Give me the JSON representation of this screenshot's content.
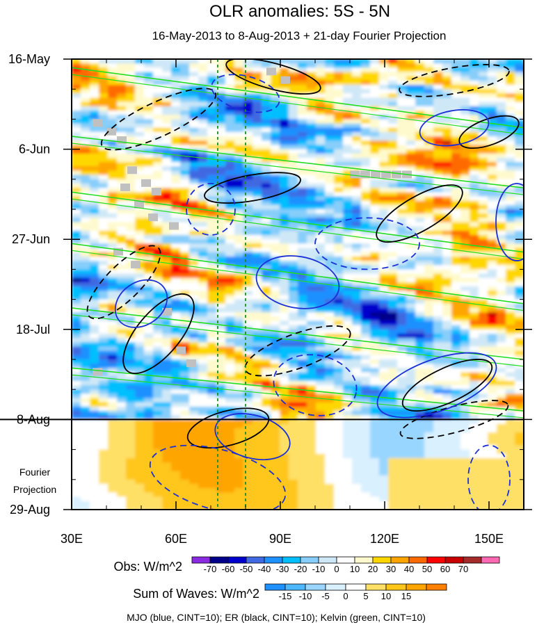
{
  "chart_data": {
    "type": "heatmap",
    "title": "OLR anomalies: 5S - 5N",
    "subtitle": "16-May-2013 to 8-Aug-2013 + 21-day Fourier Projection",
    "x_axis": {
      "range": [
        30,
        160
      ],
      "ticks": [
        {
          "value": 30,
          "label": "30E"
        },
        {
          "value": 60,
          "label": "60E"
        },
        {
          "value": 90,
          "label": "90E"
        },
        {
          "value": 120,
          "label": "120E"
        },
        {
          "value": 150,
          "label": "150E"
        }
      ],
      "minor_step": 10
    },
    "y_axis": {
      "range_days": [
        0,
        105
      ],
      "inverted": true,
      "ticks": [
        {
          "value": 0,
          "label": "16-May"
        },
        {
          "value": 21,
          "label": "6-Jun"
        },
        {
          "value": 42,
          "label": "27-Jun"
        },
        {
          "value": 63,
          "label": "18-Jul"
        },
        {
          "value": 84,
          "label": "8-Aug"
        },
        {
          "value": 105,
          "label": "29-Aug"
        }
      ],
      "minor_step": 7
    },
    "projection_label": [
      "Fourier",
      "Projection"
    ],
    "projection_start_day": 84,
    "reference_longitudes": [
      72,
      80
    ],
    "obs_colorbar": {
      "label": "Obs: W/m^2",
      "levels": [
        "-70",
        "-60",
        "-50",
        "-40",
        "-30",
        "-20",
        "-10",
        "0",
        "10",
        "20",
        "30",
        "40",
        "50",
        "60",
        "70"
      ],
      "colors": [
        "#8a2be2",
        "#00008b",
        "#0000cd",
        "#4169e1",
        "#1e90ff",
        "#00bfff",
        "#87cefa",
        "#cfe8f7",
        "#ffffff",
        "#fffacd",
        "#ffd700",
        "#ffa500",
        "#ff6a00",
        "#ff0000",
        "#c80000",
        "#a52a2a",
        "#ff69b4"
      ]
    },
    "waves_colorbar": {
      "label": "Sum of Waves: W/m^2",
      "levels": [
        "-15",
        "-10",
        "-5",
        "0",
        "5",
        "10",
        "15"
      ],
      "colors": [
        "#1e90ff",
        "#4db8ff",
        "#99d6ff",
        "#d9f0ff",
        "#ffffff",
        "#ffe066",
        "#ffc61a",
        "#ffa500",
        "#ff7f00"
      ]
    },
    "footnote": "MJO (blue, CINT=10); ER (black, CINT=10); Kelvin (green, CINT=10)",
    "mjo_contours": [
      {
        "lon": 50,
        "day": 57,
        "a": 8,
        "b": 5,
        "angle": -35,
        "sign": "pos"
      },
      {
        "lon": 82,
        "day": 88,
        "a": 11,
        "b": 5,
        "angle": 15,
        "sign": "pos"
      },
      {
        "lon": 95,
        "day": 52,
        "a": 12,
        "b": 6,
        "angle": 10,
        "sign": "pos"
      },
      {
        "lon": 135,
        "day": 76,
        "a": 18,
        "b": 6,
        "angle": -20,
        "sign": "pos"
      },
      {
        "lon": 158,
        "day": 38,
        "a": 6,
        "b": 9,
        "angle": 0,
        "sign": "pos"
      },
      {
        "lon": 140,
        "day": 16,
        "a": 10,
        "b": 4,
        "angle": -10,
        "sign": "pos"
      },
      {
        "lon": 72,
        "day": 98,
        "a": 20,
        "b": 7,
        "angle": 15,
        "sign": "neg"
      },
      {
        "lon": 70,
        "day": 35,
        "a": 7,
        "b": 6,
        "angle": 0,
        "sign": "neg"
      },
      {
        "lon": 115,
        "day": 43,
        "a": 15,
        "b": 6,
        "angle": 0,
        "sign": "neg"
      },
      {
        "lon": 100,
        "day": 76,
        "a": 12,
        "b": 7,
        "angle": 10,
        "sign": "neg"
      },
      {
        "lon": 80,
        "day": 8,
        "a": 10,
        "b": 4,
        "angle": 15,
        "sign": "neg"
      },
      {
        "lon": 150,
        "day": 98,
        "a": 6,
        "b": 8,
        "angle": 0,
        "sign": "neg"
      }
    ],
    "er_contours": [
      {
        "lon": 55,
        "day": 64,
        "a": 14,
        "b": 5,
        "angle": -50,
        "sign": "pos"
      },
      {
        "lon": 88,
        "day": 4,
        "a": 14,
        "b": 3,
        "angle": 15,
        "sign": "pos"
      },
      {
        "lon": 130,
        "day": 36,
        "a": 14,
        "b": 4,
        "angle": -30,
        "sign": "pos"
      },
      {
        "lon": 138,
        "day": 76,
        "a": 14,
        "b": 4,
        "angle": -25,
        "sign": "pos"
      },
      {
        "lon": 82,
        "day": 30,
        "a": 14,
        "b": 3,
        "angle": -10,
        "sign": "pos"
      },
      {
        "lon": 75,
        "day": 86,
        "a": 12,
        "b": 4,
        "angle": -15,
        "sign": "pos"
      },
      {
        "lon": 150,
        "day": 17,
        "a": 9,
        "b": 3,
        "angle": -20,
        "sign": "pos"
      },
      {
        "lon": 45,
        "day": 52,
        "a": 14,
        "b": 4,
        "angle": -45,
        "sign": "neg"
      },
      {
        "lon": 55,
        "day": 14,
        "a": 18,
        "b": 4,
        "angle": -25,
        "sign": "neg"
      },
      {
        "lon": 95,
        "day": 68,
        "a": 16,
        "b": 4,
        "angle": -20,
        "sign": "neg"
      },
      {
        "lon": 140,
        "day": 84,
        "a": 16,
        "b": 3,
        "angle": -15,
        "sign": "neg"
      },
      {
        "lon": 140,
        "day": 5,
        "a": 16,
        "b": 3,
        "angle": -10,
        "sign": "neg"
      }
    ],
    "kelvin_lines": [
      {
        "lon0": 30,
        "day0": 2,
        "lon1": 160,
        "day1": 16
      },
      {
        "lon0": 30,
        "day0": 18,
        "lon1": 160,
        "day1": 30
      },
      {
        "lon0": 30,
        "day0": 31,
        "lon1": 160,
        "day1": 45
      },
      {
        "lon0": 30,
        "day0": 43,
        "lon1": 160,
        "day1": 57
      },
      {
        "lon0": 30,
        "day0": 58,
        "lon1": 160,
        "day1": 70
      },
      {
        "lon0": 30,
        "day0": 72,
        "lon1": 160,
        "day1": 82
      }
    ]
  }
}
